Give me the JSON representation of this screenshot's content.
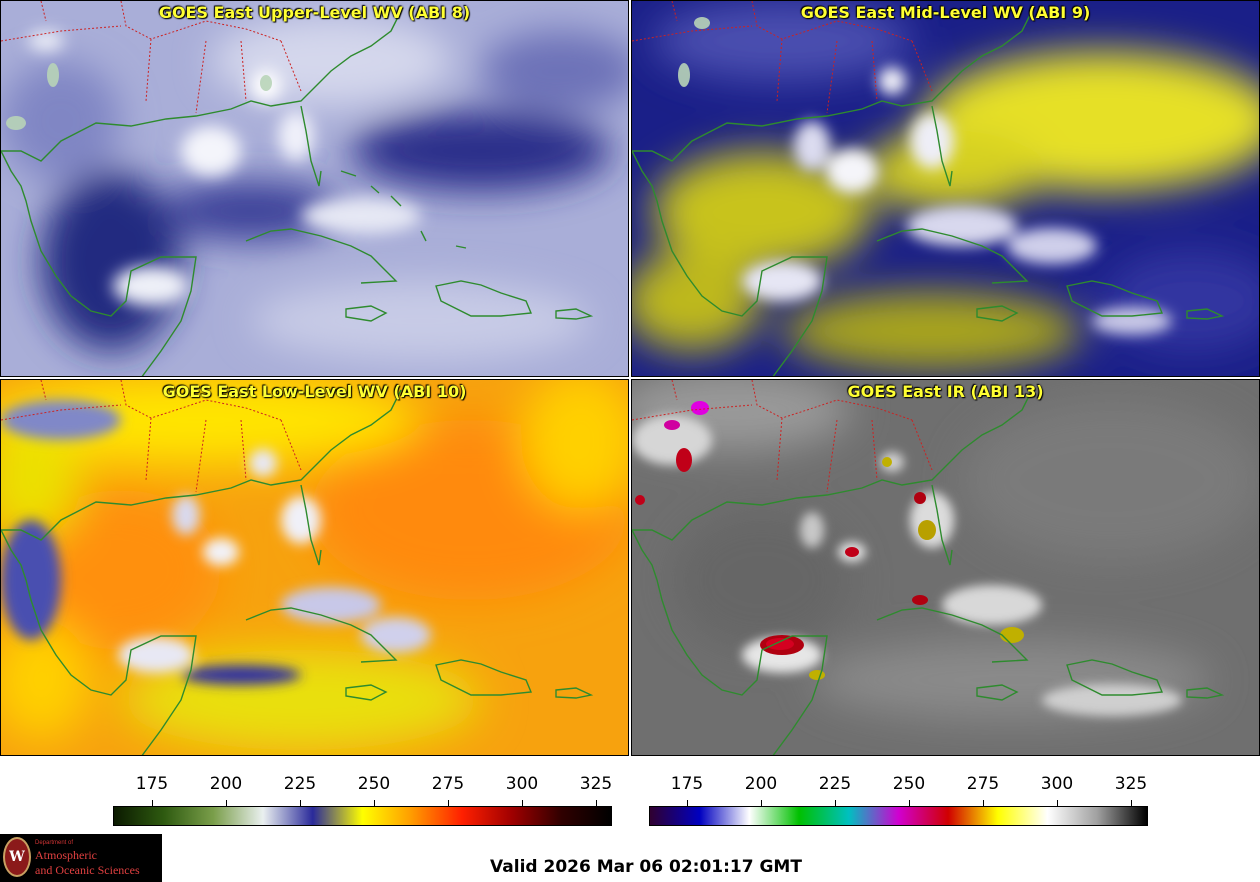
{
  "panels": {
    "upper": {
      "title": "GOES East Upper-Level WV (ABI 8)"
    },
    "mid": {
      "title": "GOES East Mid-Level WV (ABI 9)"
    },
    "low": {
      "title": "GOES East Low-Level WV (ABI 10)"
    },
    "ir": {
      "title": "GOES East IR (ABI 13)"
    }
  },
  "colorbars": {
    "wv": {
      "ticks": [
        "175",
        "200",
        "225",
        "250",
        "275",
        "300",
        "325"
      ],
      "colors": [
        "#0b1a00",
        "#2e5a10",
        "#7a9e4a",
        "#eaf0f0",
        "#2a2a9a",
        "#ffff00",
        "#ff9a00",
        "#ff2000",
        "#a00000",
        "#300000",
        "#000000"
      ]
    },
    "ir": {
      "ticks": [
        "175",
        "200",
        "225",
        "250",
        "275",
        "300",
        "325"
      ],
      "colors": [
        "#300030",
        "#0000c0",
        "#ffffff",
        "#00c000",
        "#00c0c0",
        "#d000d0",
        "#d00000",
        "#ffff00",
        "#ffffff",
        "#a0a0a0",
        "#000000"
      ]
    }
  },
  "logo": {
    "line1": "Department of",
    "line2": "Atmospheric",
    "line3": "and Oceanic Sciences",
    "seal_letter": "W"
  },
  "valid_time": "Valid 2026 Mar 06 02:01:17 GMT"
}
